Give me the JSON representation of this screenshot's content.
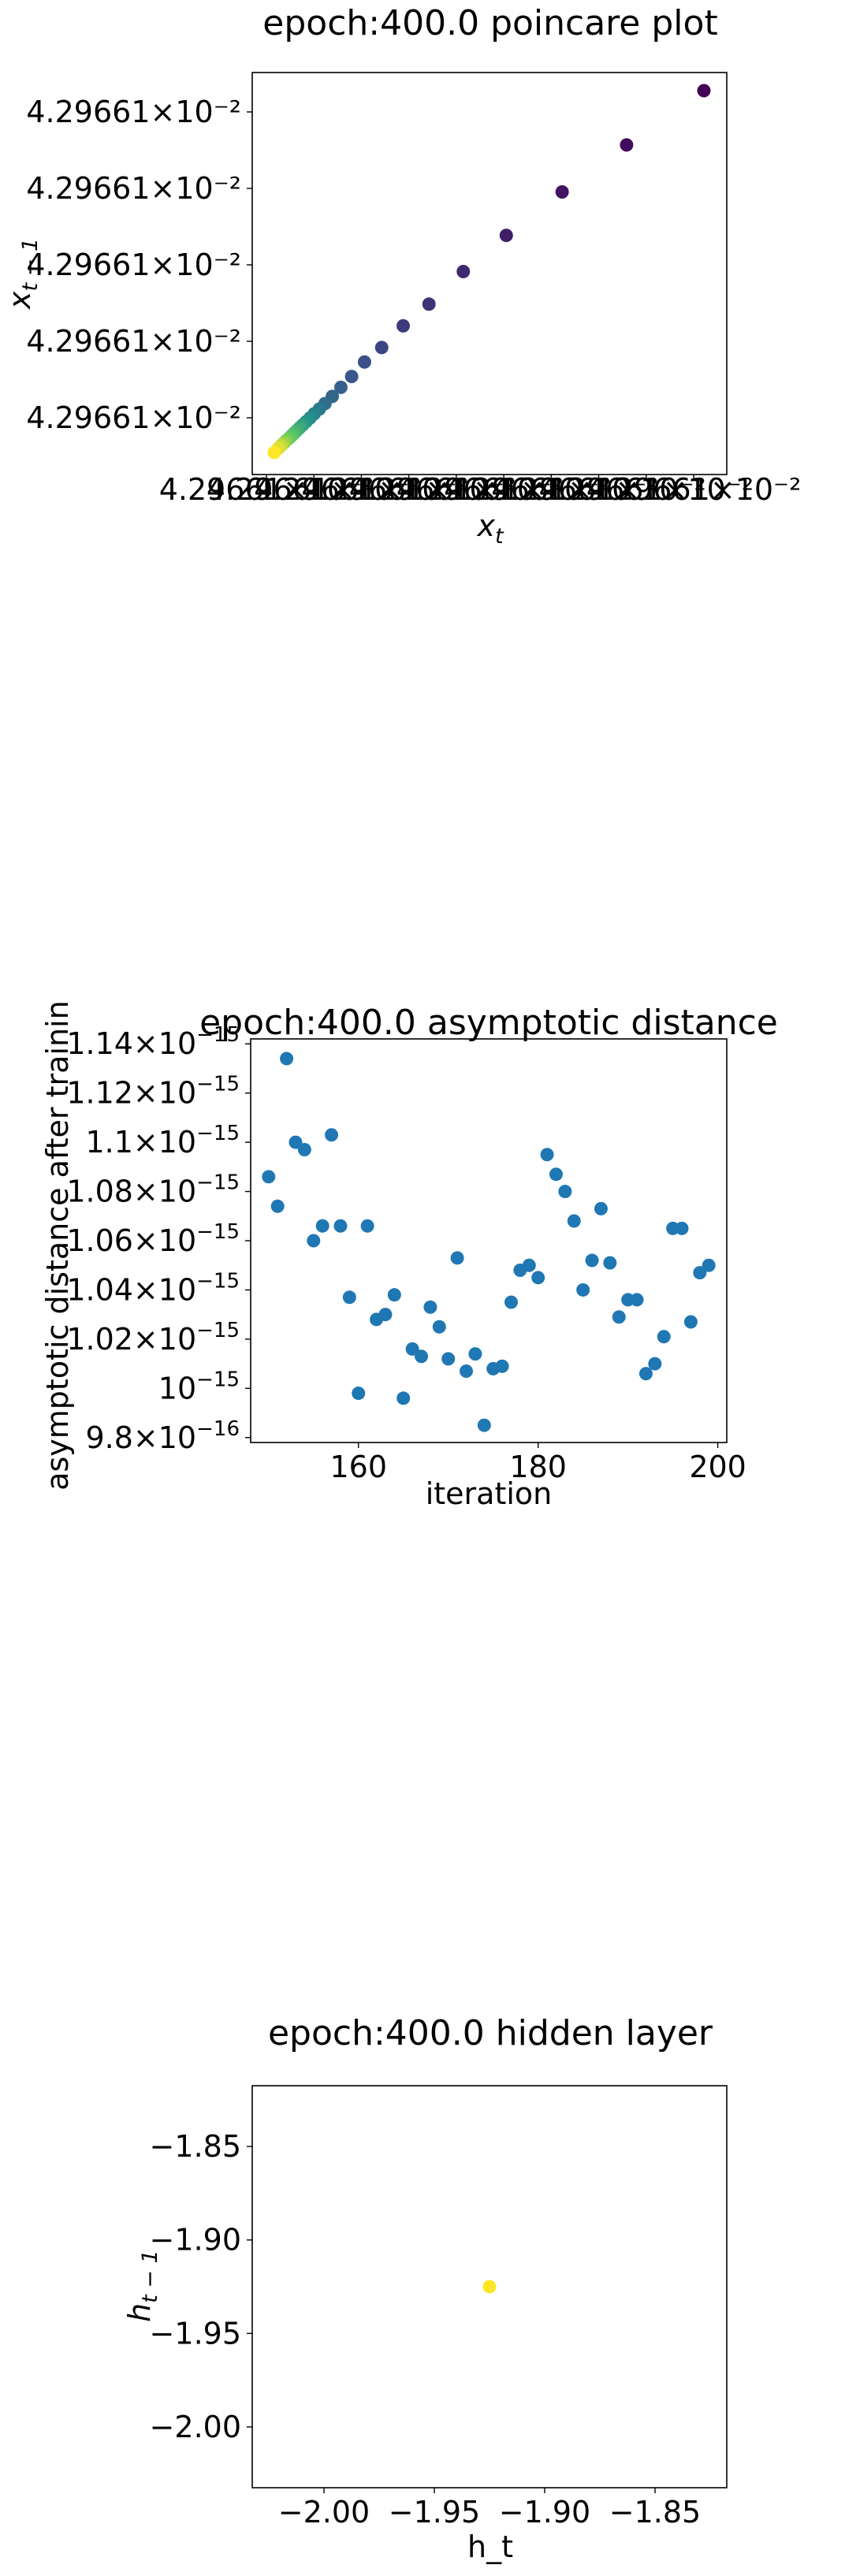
{
  "chart_data": [
    {
      "type": "scatter",
      "title": "epoch:400.0 poincare plot",
      "xlabel": "x_t",
      "ylabel": "x_{t-1}",
      "xtick_labels": [
        "4.29661×10⁻²",
        "4.29661×10⁻²",
        "4.29661×10⁻²",
        "4.29661×10⁻²",
        "4.29661×10⁻²",
        "4.29661×10⁻²",
        "4.29661×10⁻²",
        "4.29661×10⁻²",
        "4.29661×10⁻²",
        "4.29661×10⁻²"
      ],
      "ytick_labels": [
        "4.29661×10⁻²",
        "4.29661×10⁻²",
        "4.29661×10⁻²",
        "4.29661×10⁻²",
        "4.29661×10⁻²"
      ],
      "colormap": "viridis",
      "points": [
        {
          "x": 1.0,
          "y": 1.0,
          "c": 0.0
        },
        {
          "x": 0.82,
          "y": 0.85,
          "c": 0.03
        },
        {
          "x": 0.67,
          "y": 0.72,
          "c": 0.06
        },
        {
          "x": 0.54,
          "y": 0.6,
          "c": 0.09
        },
        {
          "x": 0.44,
          "y": 0.5,
          "c": 0.12
        },
        {
          "x": 0.36,
          "y": 0.41,
          "c": 0.15
        },
        {
          "x": 0.3,
          "y": 0.35,
          "c": 0.18
        },
        {
          "x": 0.25,
          "y": 0.29,
          "c": 0.21
        },
        {
          "x": 0.21,
          "y": 0.25,
          "c": 0.24
        },
        {
          "x": 0.18,
          "y": 0.21,
          "c": 0.27
        },
        {
          "x": 0.155,
          "y": 0.18,
          "c": 0.3
        },
        {
          "x": 0.135,
          "y": 0.155,
          "c": 0.33
        },
        {
          "x": 0.118,
          "y": 0.135,
          "c": 0.36
        },
        {
          "x": 0.105,
          "y": 0.12,
          "c": 0.4
        },
        {
          "x": 0.093,
          "y": 0.107,
          "c": 0.44
        },
        {
          "x": 0.083,
          "y": 0.095,
          "c": 0.48
        },
        {
          "x": 0.074,
          "y": 0.085,
          "c": 0.52
        },
        {
          "x": 0.066,
          "y": 0.076,
          "c": 0.56
        },
        {
          "x": 0.059,
          "y": 0.068,
          "c": 0.6
        },
        {
          "x": 0.052,
          "y": 0.06,
          "c": 0.64
        },
        {
          "x": 0.046,
          "y": 0.053,
          "c": 0.68
        },
        {
          "x": 0.04,
          "y": 0.046,
          "c": 0.72
        },
        {
          "x": 0.034,
          "y": 0.039,
          "c": 0.76
        },
        {
          "x": 0.028,
          "y": 0.033,
          "c": 0.8
        },
        {
          "x": 0.022,
          "y": 0.026,
          "c": 0.85
        },
        {
          "x": 0.016,
          "y": 0.019,
          "c": 0.9
        },
        {
          "x": 0.01,
          "y": 0.012,
          "c": 0.95
        },
        {
          "x": 0.0,
          "y": 0.0,
          "c": 1.0
        }
      ]
    },
    {
      "type": "scatter",
      "title": "epoch:400.0 asymptotic distance",
      "xlabel": "iteration",
      "ylabel": "asymptotic distance after training",
      "xlim": [
        148,
        201
      ],
      "ylim": [
        9.78e-16,
        1.142e-15
      ],
      "xticks": [
        160,
        180,
        200
      ],
      "xtick_labels": [
        "160",
        "180",
        "200"
      ],
      "yticks": [
        9.8e-16,
        1e-15,
        1.02e-15,
        1.04e-15,
        1.06e-15,
        1.08e-15,
        1.1e-15,
        1.12e-15,
        1.14e-15
      ],
      "ytick_labels": [
        {
          "mant": "9.8×10",
          "exp": "−16"
        },
        {
          "mant": "10",
          "exp": "−15"
        },
        {
          "mant": "1.02×10",
          "exp": "−15"
        },
        {
          "mant": "1.04×10",
          "exp": "−15"
        },
        {
          "mant": "1.06×10",
          "exp": "−15"
        },
        {
          "mant": "1.08×10",
          "exp": "−15"
        },
        {
          "mant": "1.1×10",
          "exp": "−15"
        },
        {
          "mant": "1.12×10",
          "exp": "−15"
        },
        {
          "mant": "1.14×10",
          "exp": "−15"
        }
      ],
      "color": "#1f77b4",
      "x": [
        150,
        151,
        152,
        153,
        154,
        155,
        156,
        157,
        158,
        159,
        160,
        161,
        162,
        163,
        164,
        165,
        166,
        167,
        168,
        169,
        170,
        171,
        172,
        173,
        174,
        175,
        176,
        177,
        178,
        179,
        180,
        181,
        182,
        183,
        184,
        185,
        186,
        187,
        188,
        189,
        190,
        191,
        192,
        193,
        194,
        195,
        196,
        197,
        198,
        199
      ],
      "y": [
        1.086e-15,
        1.074e-15,
        1.134e-15,
        1.1e-15,
        1.097e-15,
        1.06e-15,
        1.066e-15,
        1.103e-15,
        1.066e-15,
        1.037e-15,
        9.98e-16,
        1.066e-15,
        1.028e-15,
        1.03e-15,
        1.038e-15,
        9.96e-16,
        1.016e-15,
        1.013e-15,
        1.033e-15,
        1.025e-15,
        1.012e-15,
        1.053e-15,
        1.007e-15,
        1.014e-15,
        9.85e-16,
        1.008e-15,
        1.009e-15,
        1.035e-15,
        1.048e-15,
        1.05e-15,
        1.045e-15,
        1.095e-15,
        1.087e-15,
        1.08e-15,
        1.068e-15,
        1.04e-15,
        1.052e-15,
        1.073e-15,
        1.051e-15,
        1.029e-15,
        1.036e-15,
        1.036e-15,
        1.006e-15,
        1.01e-15,
        1.021e-15,
        1.065e-15,
        1.065e-15,
        1.027e-15,
        1.047e-15,
        1.05e-15
      ]
    },
    {
      "type": "scatter",
      "title": "epoch:400.0 hidden layer",
      "xlabel": "h_t",
      "ylabel": "h_{t-1}",
      "xlim": [
        -2.0325,
        -1.8175
      ],
      "ylim": [
        -2.0325,
        -1.8175
      ],
      "xticks": [
        -2.0,
        -1.95,
        -1.9,
        -1.85
      ],
      "xtick_labels": [
        "−2.00",
        "−1.95",
        "−1.90",
        "−1.85"
      ],
      "yticks": [
        -2.0,
        -1.95,
        -1.9,
        -1.85
      ],
      "ytick_labels": [
        "−2.00",
        "−1.95",
        "−1.90",
        "−1.85"
      ],
      "color": "#fde725",
      "x": [
        -1.925
      ],
      "y": [
        -1.925
      ]
    }
  ]
}
